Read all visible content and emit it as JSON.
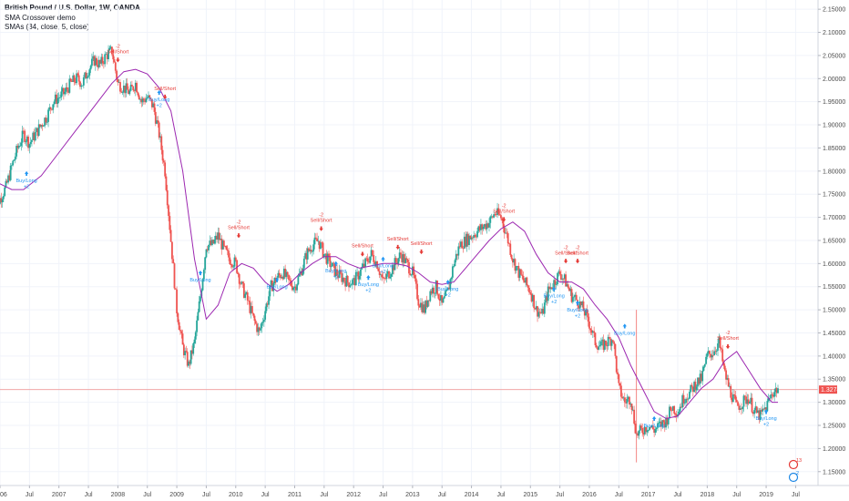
{
  "legend": {
    "title": "British Pound / U.S. Dollar, 1W, OANDA",
    "line2": "SMA Crossover demo",
    "line3": "SMAs (34, close, 5, close)"
  },
  "colors": {
    "up": "#26a69a",
    "down": "#ef5350",
    "sma": "#9c27b0",
    "buy": "#2196f3",
    "sell": "#e53935",
    "price_line": "#ef9a9a",
    "axis_text": "#4a4a4a"
  },
  "current_price_label": "1.32748",
  "badges": [
    {
      "label": "13",
      "color": "#e53935"
    },
    {
      "label": "2",
      "color": "#1e88e5"
    }
  ],
  "chart_data": {
    "type": "line",
    "title": "British Pound / U.S. Dollar, 1W, OANDA",
    "ylim": [
      1.12,
      2.17
    ],
    "xlim": [
      2006.0,
      2019.88
    ],
    "y_ticks": [
      "2.15000",
      "2.10000",
      "2.05000",
      "2.00000",
      "1.95000",
      "1.90000",
      "1.85000",
      "1.80000",
      "1.75000",
      "1.70000",
      "1.65000",
      "1.60000",
      "1.55000",
      "1.50000",
      "1.45000",
      "1.40000",
      "1.35000",
      "1.30000",
      "1.25000",
      "1.20000",
      "1.15000"
    ],
    "x_ticks": [
      {
        "label": "2006",
        "x": 2006.0
      },
      {
        "label": "Jul",
        "x": 2006.5
      },
      {
        "label": "2007",
        "x": 2007.0
      },
      {
        "label": "Jul",
        "x": 2007.5
      },
      {
        "label": "2008",
        "x": 2008.0
      },
      {
        "label": "Jul",
        "x": 2008.5
      },
      {
        "label": "2009",
        "x": 2009.0
      },
      {
        "label": "Jul",
        "x": 2009.5
      },
      {
        "label": "2010",
        "x": 2010.0
      },
      {
        "label": "Jul",
        "x": 2010.5
      },
      {
        "label": "2011",
        "x": 2011.0
      },
      {
        "label": "Jul",
        "x": 2011.5
      },
      {
        "label": "2012",
        "x": 2012.0
      },
      {
        "label": "Jul",
        "x": 2012.5
      },
      {
        "label": "2013",
        "x": 2013.0
      },
      {
        "label": "Jul",
        "x": 2013.5
      },
      {
        "label": "2014",
        "x": 2014.0
      },
      {
        "label": "Jul",
        "x": 2014.5
      },
      {
        "label": "2015",
        "x": 2015.0
      },
      {
        "label": "Jul",
        "x": 2015.5
      },
      {
        "label": "2016",
        "x": 2016.0
      },
      {
        "label": "Jul",
        "x": 2016.5
      },
      {
        "label": "2017",
        "x": 2017.0
      },
      {
        "label": "Jul",
        "x": 2017.5
      },
      {
        "label": "2018",
        "x": 2018.0
      },
      {
        "label": "Jul",
        "x": 2018.5
      },
      {
        "label": "2019",
        "x": 2019.0
      },
      {
        "label": "Jul",
        "x": 2019.5
      }
    ],
    "current_price": 1.3275,
    "series": [
      {
        "name": "British Pound / U.S. Dollar",
        "kind": "candles",
        "x": [
          2005.88,
          2006.0,
          2006.1,
          2006.2,
          2006.3,
          2006.4,
          2006.5,
          2006.6,
          2006.7,
          2006.8,
          2006.9,
          2007.0,
          2007.1,
          2007.2,
          2007.3,
          2007.4,
          2007.5,
          2007.6,
          2007.7,
          2007.8,
          2007.9,
          2008.0,
          2008.1,
          2008.2,
          2008.3,
          2008.4,
          2008.5,
          2008.6,
          2008.7,
          2008.8,
          2008.9,
          2009.0,
          2009.1,
          2009.2,
          2009.3,
          2009.4,
          2009.5,
          2009.6,
          2009.7,
          2009.8,
          2009.9,
          2010.0,
          2010.1,
          2010.2,
          2010.3,
          2010.4,
          2010.5,
          2010.6,
          2010.7,
          2010.8,
          2010.9,
          2011.0,
          2011.1,
          2011.2,
          2011.3,
          2011.4,
          2011.5,
          2011.6,
          2011.7,
          2011.8,
          2011.9,
          2012.0,
          2012.1,
          2012.2,
          2012.3,
          2012.4,
          2012.5,
          2012.6,
          2012.7,
          2012.8,
          2012.9,
          2013.0,
          2013.1,
          2013.2,
          2013.3,
          2013.4,
          2013.5,
          2013.6,
          2013.7,
          2013.8,
          2013.9,
          2014.0,
          2014.1,
          2014.2,
          2014.3,
          2014.4,
          2014.5,
          2014.6,
          2014.7,
          2014.8,
          2014.9,
          2015.0,
          2015.1,
          2015.2,
          2015.3,
          2015.4,
          2015.5,
          2015.6,
          2015.7,
          2015.8,
          2015.9,
          2016.0,
          2016.1,
          2016.2,
          2016.3,
          2016.4,
          2016.5,
          2016.6,
          2016.7,
          2016.8,
          2016.9,
          2017.0,
          2017.1,
          2017.2,
          2017.3,
          2017.4,
          2017.5,
          2017.6,
          2017.7,
          2017.8,
          2017.9,
          2018.0,
          2018.1,
          2018.2,
          2018.3,
          2018.4,
          2018.5,
          2018.6,
          2018.7,
          2018.8,
          2018.9,
          2019.0,
          2019.1,
          2019.2
        ],
        "values": [
          1.72,
          1.74,
          1.765,
          1.81,
          1.85,
          1.88,
          1.86,
          1.88,
          1.9,
          1.92,
          1.95,
          1.96,
          1.97,
          1.99,
          2.0,
          1.99,
          2.02,
          2.04,
          2.03,
          2.05,
          2.06,
          1.99,
          1.98,
          1.97,
          1.99,
          1.95,
          1.96,
          1.94,
          1.88,
          1.8,
          1.65,
          1.5,
          1.42,
          1.38,
          1.43,
          1.53,
          1.64,
          1.64,
          1.66,
          1.63,
          1.61,
          1.6,
          1.55,
          1.52,
          1.48,
          1.45,
          1.5,
          1.55,
          1.57,
          1.58,
          1.56,
          1.55,
          1.58,
          1.62,
          1.64,
          1.65,
          1.62,
          1.6,
          1.58,
          1.57,
          1.56,
          1.56,
          1.58,
          1.6,
          1.62,
          1.6,
          1.56,
          1.58,
          1.6,
          1.62,
          1.6,
          1.58,
          1.52,
          1.5,
          1.54,
          1.55,
          1.51,
          1.54,
          1.6,
          1.64,
          1.65,
          1.66,
          1.67,
          1.68,
          1.69,
          1.71,
          1.7,
          1.66,
          1.61,
          1.58,
          1.56,
          1.54,
          1.5,
          1.49,
          1.54,
          1.56,
          1.58,
          1.56,
          1.53,
          1.52,
          1.5,
          1.47,
          1.43,
          1.42,
          1.43,
          1.44,
          1.33,
          1.3,
          1.31,
          1.23,
          1.24,
          1.25,
          1.24,
          1.25,
          1.26,
          1.29,
          1.28,
          1.31,
          1.32,
          1.34,
          1.35,
          1.4,
          1.41,
          1.43,
          1.36,
          1.32,
          1.29,
          1.3,
          1.31,
          1.28,
          1.27,
          1.29,
          1.32,
          1.33
        ]
      },
      {
        "name": "SMA 34",
        "kind": "line",
        "x": [
          2005.88,
          2006.2,
          2006.4,
          2006.7,
          2007.0,
          2007.3,
          2007.6,
          2007.9,
          2008.1,
          2008.3,
          2008.5,
          2008.7,
          2008.9,
          2009.1,
          2009.3,
          2009.5,
          2009.7,
          2009.9,
          2010.1,
          2010.3,
          2010.5,
          2010.7,
          2010.9,
          2011.1,
          2011.3,
          2011.5,
          2011.7,
          2011.9,
          2012.1,
          2012.3,
          2012.5,
          2012.7,
          2012.9,
          2013.1,
          2013.3,
          2013.5,
          2013.7,
          2013.9,
          2014.1,
          2014.3,
          2014.5,
          2014.7,
          2014.9,
          2015.1,
          2015.3,
          2015.5,
          2015.7,
          2015.9,
          2016.1,
          2016.3,
          2016.5,
          2016.7,
          2016.9,
          2017.1,
          2017.3,
          2017.5,
          2017.7,
          2017.9,
          2018.1,
          2018.3,
          2018.5,
          2018.7,
          2018.9,
          2019.1,
          2019.2
        ],
        "values": [
          1.78,
          1.76,
          1.76,
          1.79,
          1.84,
          1.89,
          1.94,
          1.99,
          2.015,
          2.02,
          2.01,
          1.98,
          1.93,
          1.8,
          1.61,
          1.48,
          1.51,
          1.58,
          1.6,
          1.59,
          1.56,
          1.54,
          1.555,
          1.58,
          1.6,
          1.615,
          1.615,
          1.6,
          1.59,
          1.595,
          1.6,
          1.6,
          1.595,
          1.58,
          1.56,
          1.555,
          1.56,
          1.59,
          1.62,
          1.65,
          1.675,
          1.69,
          1.67,
          1.62,
          1.58,
          1.56,
          1.56,
          1.545,
          1.51,
          1.48,
          1.44,
          1.38,
          1.33,
          1.28,
          1.265,
          1.27,
          1.3,
          1.33,
          1.35,
          1.39,
          1.41,
          1.37,
          1.33,
          1.3,
          1.3
        ]
      }
    ],
    "signals": [
      {
        "x": 2006.45,
        "price": 1.8,
        "type": "buy",
        "label": "Buy/Long",
        "qty": "+2"
      },
      {
        "x": 2008.0,
        "price": 2.045,
        "type": "sell",
        "label": "Sell/Short",
        "qty": "-2"
      },
      {
        "x": 2008.7,
        "price": 1.975,
        "type": "buy",
        "label": "Buy/Long",
        "qty": "+2"
      },
      {
        "x": 2008.8,
        "price": 1.965,
        "type": "sell",
        "label": "Sell/Short",
        "qty": ""
      },
      {
        "x": 2009.4,
        "price": 1.585,
        "type": "buy",
        "label": "Buy/Long",
        "qty": ""
      },
      {
        "x": 2010.05,
        "price": 1.665,
        "type": "sell",
        "label": "Sell/Short",
        "qty": "-2"
      },
      {
        "x": 2010.7,
        "price": 1.57,
        "type": "buy",
        "label": "Buy/Long",
        "qty": ""
      },
      {
        "x": 2011.45,
        "price": 1.68,
        "type": "sell",
        "label": "Sell/Short",
        "qty": "-2"
      },
      {
        "x": 2011.7,
        "price": 1.605,
        "type": "buy",
        "label": "Buy/Long",
        "qty": "+2"
      },
      {
        "x": 2012.15,
        "price": 1.625,
        "type": "sell",
        "label": "Sell/Short",
        "qty": ""
      },
      {
        "x": 2012.25,
        "price": 1.575,
        "type": "buy",
        "label": "Buy/Long",
        "qty": "+2"
      },
      {
        "x": 2012.5,
        "price": 1.615,
        "type": "buy",
        "label": "Buy/Long",
        "qty": "+2"
      },
      {
        "x": 2012.75,
        "price": 1.64,
        "type": "sell",
        "label": "Sell/Short",
        "qty": ""
      },
      {
        "x": 2013.15,
        "price": 1.63,
        "type": "sell",
        "label": "Sell/Short",
        "qty": ""
      },
      {
        "x": 2013.6,
        "price": 1.565,
        "type": "buy",
        "label": "Buy/Long",
        "qty": "+2"
      },
      {
        "x": 2014.55,
        "price": 1.7,
        "type": "sell",
        "label": "Sell/Short",
        "qty": "-2"
      },
      {
        "x": 2015.4,
        "price": 1.55,
        "type": "buy",
        "label": "Buy/Long",
        "qty": "+2"
      },
      {
        "x": 2015.6,
        "price": 1.61,
        "type": "sell",
        "label": "Sell/Short",
        "qty": "-2"
      },
      {
        "x": 2015.8,
        "price": 1.61,
        "type": "sell",
        "label": "Sell/Short",
        "qty": "-2"
      },
      {
        "x": 2015.8,
        "price": 1.52,
        "type": "buy",
        "label": "Buy/Long",
        "qty": "+2"
      },
      {
        "x": 2016.6,
        "price": 1.47,
        "type": "buy",
        "label": "Buy/Long",
        "qty": ""
      },
      {
        "x": 2017.1,
        "price": 1.27,
        "type": "buy",
        "label": "Buy/Long",
        "qty": ""
      },
      {
        "x": 2018.35,
        "price": 1.425,
        "type": "sell",
        "label": "Sell/Short",
        "qty": "-2"
      },
      {
        "x": 2019.0,
        "price": 1.285,
        "type": "buy",
        "label": "Buy/Long",
        "qty": "+2"
      }
    ],
    "spike": {
      "x": 2016.8,
      "low": 1.17,
      "high": 1.5
    }
  }
}
